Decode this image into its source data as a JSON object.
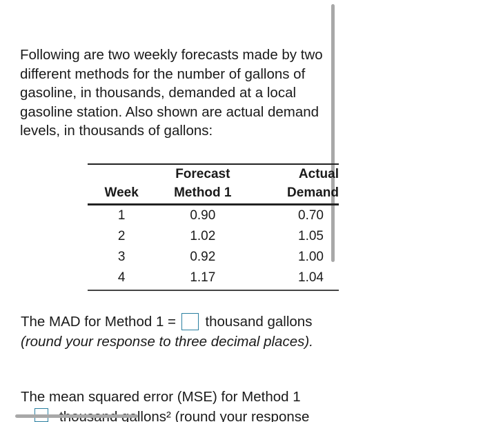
{
  "intro": "Following are two weekly forecasts made by two different methods for the number of gallons of gasoline, in thousands, demanded at a local gasoline station. Also shown are actual demand levels, in thousands of gallons:",
  "table": {
    "headers": {
      "week": "Week",
      "forecast_top": "Forecast",
      "forecast_bottom": "Method 1",
      "actual_top": "Actual",
      "actual_bottom": "Demand"
    },
    "rows": [
      {
        "week": "1",
        "forecast": "0.90",
        "actual": "0.70"
      },
      {
        "week": "2",
        "forecast": "1.02",
        "actual": "1.05"
      },
      {
        "week": "3",
        "forecast": "0.92",
        "actual": "1.00"
      },
      {
        "week": "4",
        "forecast": "1.17",
        "actual": "1.04"
      }
    ]
  },
  "question1": {
    "prefix": "The MAD for Method 1 =",
    "suffix": "thousand gallons",
    "note": "(round your response to three decimal places).",
    "answer_value": ""
  },
  "question2": {
    "prefix": "The mean squared error (MSE) for Method 1",
    "cutoff_text": "thousand gallons² (round your response",
    "answer_value": ""
  }
}
